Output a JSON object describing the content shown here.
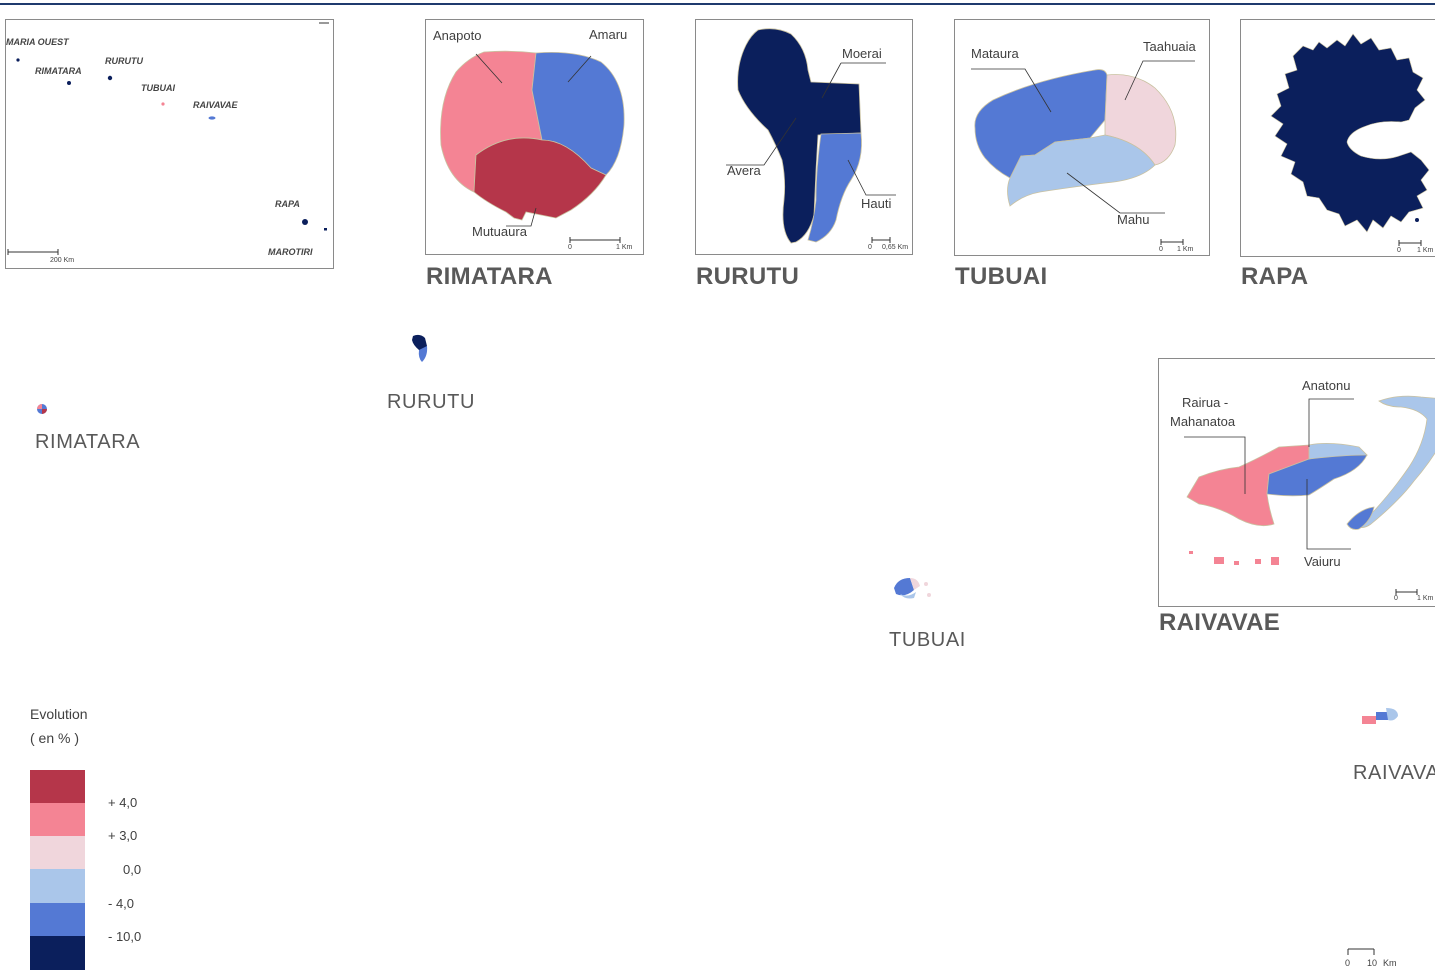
{
  "colors": {
    "c1": "#b5364a",
    "c2": "#f48494",
    "c3": "#f0d6dc",
    "c4": "#aac6ea",
    "c5": "#5479d4",
    "c6": "#0b1f5c"
  },
  "overview": {
    "labels": [
      "MARIA OUEST",
      "RIMATARA",
      "RURUTU",
      "TUBUAI",
      "RAIVAVAE",
      "RAPA",
      "MAROTIRI"
    ],
    "scale": "200 Km"
  },
  "rimatara": {
    "title": "RIMATARA",
    "districts": [
      "Anapoto",
      "Amaru",
      "Mutuaura"
    ],
    "scale": [
      "0",
      "1 Km"
    ]
  },
  "rurutu": {
    "title": "RURUTU",
    "districts": [
      "Moerai",
      "Avera",
      "Hauti"
    ],
    "scale": [
      "0",
      "0,65 Km"
    ]
  },
  "tubuai": {
    "title": "TUBUAI",
    "districts": [
      "Mataura",
      "Taahuaia",
      "Mahu"
    ],
    "scale": [
      "0",
      "1 Km"
    ]
  },
  "rapa": {
    "title": "RAPA",
    "scale": [
      "0",
      "1 Km"
    ]
  },
  "raivavae": {
    "title": "RAIVAVAE",
    "districts": [
      "Anatonu",
      "Rairua -",
      "Mahanatoa",
      "Vaiuru"
    ],
    "scale": [
      "0",
      "1 Km"
    ]
  },
  "main_map": {
    "labels": [
      "RIMATARA",
      "RURUTU",
      "TUBUAI",
      "RAIVAVA"
    ],
    "scale": [
      "0",
      "10",
      "Km"
    ]
  },
  "legend": {
    "title_line1": "Evolution",
    "title_line2": "( en % )",
    "ticks": [
      "+ 4,0",
      "+ 3,0",
      "0,0",
      "-  4,0",
      "- 10,0"
    ]
  }
}
